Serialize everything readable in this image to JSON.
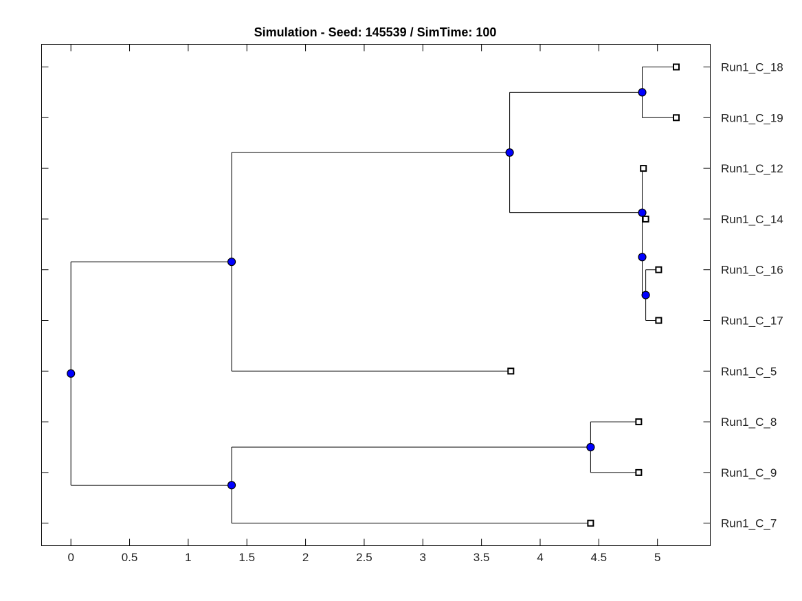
{
  "chart_data": {
    "type": "dendrogram",
    "title": "Simulation - Seed: 145539 / SimTime: 100",
    "xlim": [
      -0.25,
      5.45
    ],
    "xticks": [
      0,
      0.5,
      1,
      1.5,
      2,
      2.5,
      3,
      3.5,
      4,
      4.5,
      5
    ],
    "xtick_labels": [
      "0",
      "0.5",
      "1",
      "1.5",
      "2",
      "2.5",
      "3",
      "3.5",
      "4",
      "4.5",
      "5"
    ],
    "leaves": [
      {
        "label": "Run1_C_18",
        "x": 5.16
      },
      {
        "label": "Run1_C_19",
        "x": 5.16
      },
      {
        "label": "Run1_C_12",
        "x": 4.88
      },
      {
        "label": "Run1_C_14",
        "x": 4.9
      },
      {
        "label": "Run1_C_16",
        "x": 5.01
      },
      {
        "label": "Run1_C_17",
        "x": 5.01
      },
      {
        "label": "Run1_C_5",
        "x": 3.75
      },
      {
        "label": "Run1_C_8",
        "x": 4.84
      },
      {
        "label": "Run1_C_9",
        "x": 4.84
      },
      {
        "label": "Run1_C_7",
        "x": 4.43
      }
    ],
    "internal_nodes": [
      {
        "id": "n_18_19",
        "x": 4.87,
        "children": [
          "Run1_C_18",
          "Run1_C_19"
        ]
      },
      {
        "id": "n_16_17",
        "x": 4.9,
        "children": [
          "Run1_C_16",
          "Run1_C_17"
        ]
      },
      {
        "id": "n_14_1617",
        "x": 4.87,
        "children": [
          "Run1_C_14",
          "n_16_17"
        ]
      },
      {
        "id": "n_12_rest",
        "x": 4.87,
        "children": [
          "Run1_C_12",
          "n_14_1617"
        ]
      },
      {
        "id": "n_upper_big",
        "x": 3.74,
        "children": [
          "n_18_19",
          "n_12_rest"
        ]
      },
      {
        "id": "n_upper",
        "x": 1.37,
        "children": [
          "n_upper_big",
          "Run1_C_5"
        ]
      },
      {
        "id": "n_8_9",
        "x": 4.43,
        "children": [
          "Run1_C_8",
          "Run1_C_9"
        ]
      },
      {
        "id": "n_lower",
        "x": 1.37,
        "children": [
          "n_8_9",
          "Run1_C_7"
        ]
      },
      {
        "id": "root",
        "x": 0,
        "children": [
          "n_upper",
          "n_lower"
        ]
      }
    ],
    "colors": {
      "node_fill": "#0000ff",
      "leaf_fill": "#ffffff",
      "line": "#000000"
    },
    "grid": false
  }
}
